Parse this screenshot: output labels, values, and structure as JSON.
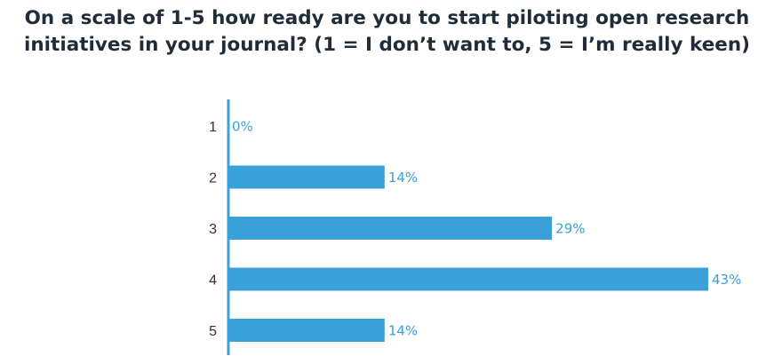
{
  "title_lines": [
    "On a scale of 1-5 how ready are you to start piloting open research",
    "initiatives in your journal? (1 = I don’t want to, 5 = I’m really keen)"
  ],
  "colors": {
    "bar": "#3aa1d8",
    "axis": "#3aa1d8",
    "title": "#1f2d3a",
    "category_text": "#333333",
    "value_text": "#3aa1d8"
  },
  "chart_data": {
    "type": "bar",
    "orientation": "horizontal",
    "title": "On a scale of 1-5 how ready are you to start piloting open research initiatives in your journal? (1 = I don’t want to, 5 = I’m really keen)",
    "categories": [
      "1",
      "2",
      "3",
      "4",
      "5"
    ],
    "values": [
      0,
      14,
      29,
      43,
      14
    ],
    "value_labels": [
      "0%",
      "14%",
      "29%",
      "43%",
      "14%"
    ],
    "unit": "%",
    "xlim": [
      0,
      43
    ],
    "grid": false,
    "legend": "none"
  }
}
